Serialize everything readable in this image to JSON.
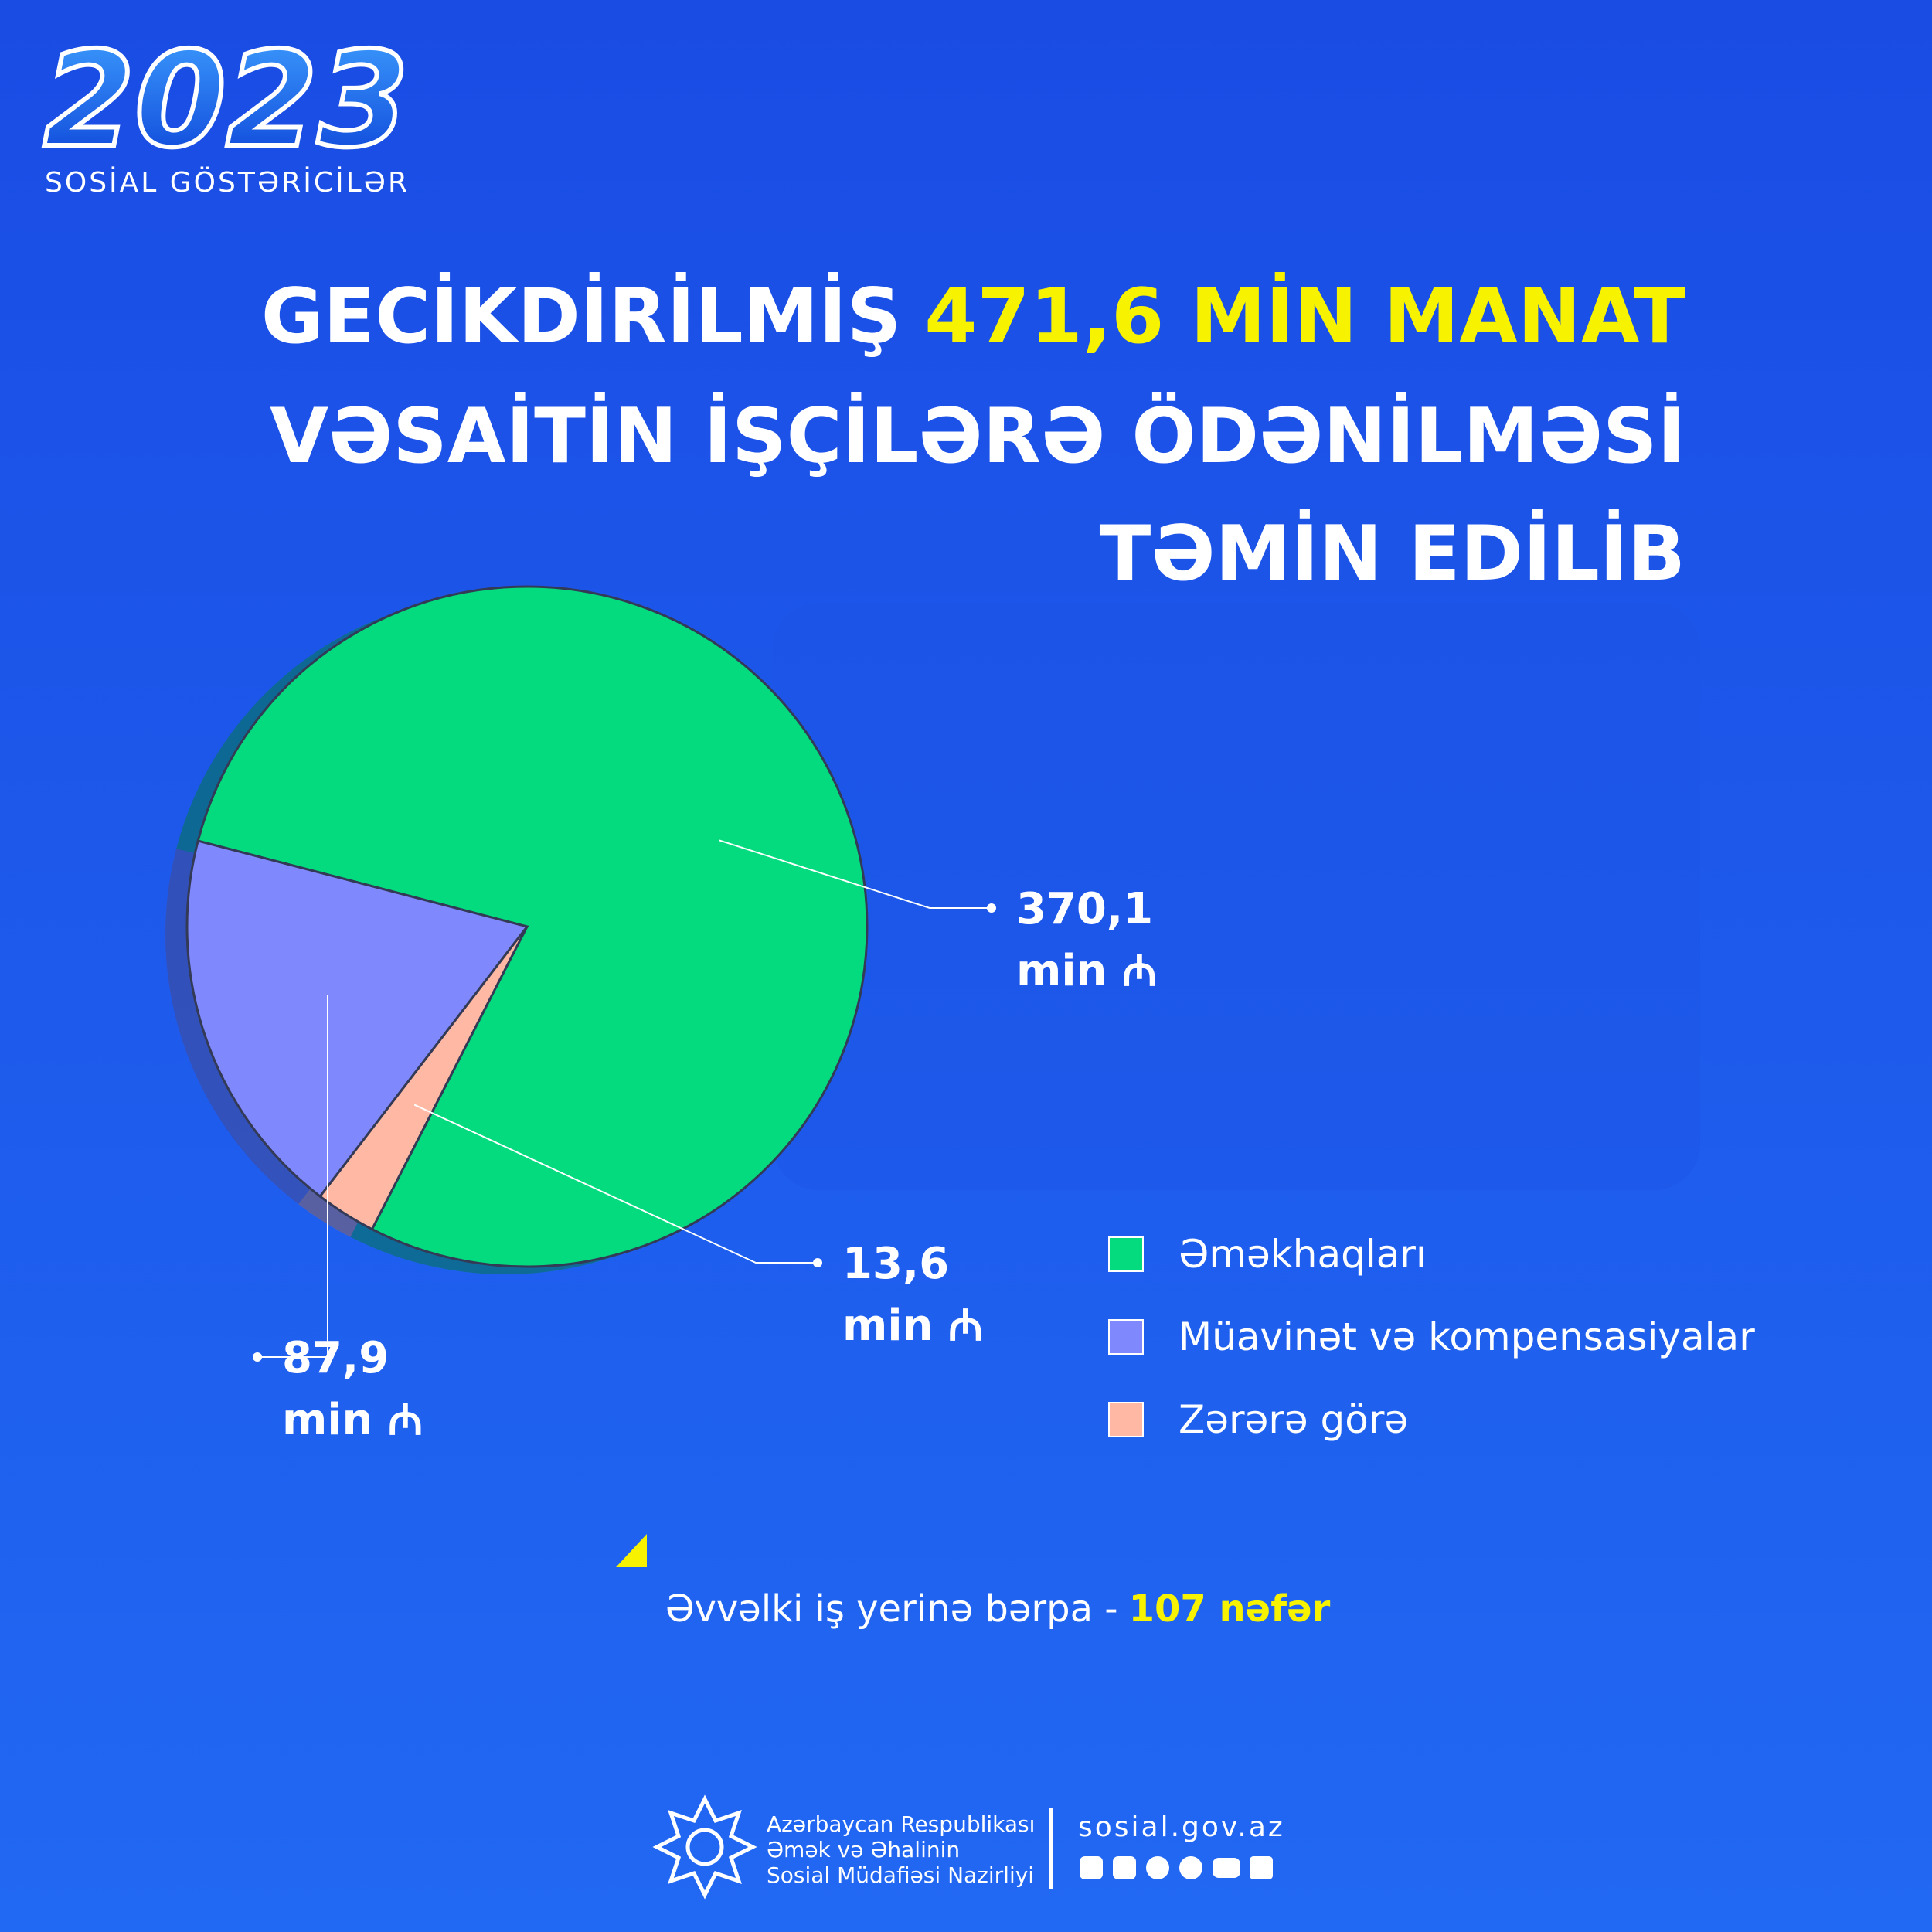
{
  "header": {
    "year": "2023",
    "subtitle": "SOSİAL GÖSTƏRİCİLƏR"
  },
  "title": {
    "line1": "GECİKDİRİLMİŞ",
    "highlight": "471,6 MİN MANAT",
    "line2": "VƏSAİTİN İŞÇİLƏRƏ ÖDƏNİLMƏSİ",
    "line3": "TƏMİN EDİLİB"
  },
  "chart_data": {
    "type": "pie",
    "categories": [
      "Əməkhaqları",
      "Müavinət və kompensasiyalar",
      "Zərərə görə"
    ],
    "values": [
      370.1,
      87.9,
      13.6
    ],
    "value_labels": [
      "370,1",
      "87,9",
      "13,6"
    ],
    "unit_label": "min ₼",
    "colors": [
      "#04db7f",
      "#8088fd",
      "#feb8a3"
    ]
  },
  "footnote": {
    "text": "Əvvəlki iş yerinə bərpa -",
    "highlight": "107 nəfər"
  },
  "footer": {
    "org_lines": [
      "Azərbaycan Respublikası",
      "Əmək və Əhalinin",
      "Sosial Müdafiəsi Nazirliyi"
    ],
    "website": "sosial.gov.az"
  }
}
